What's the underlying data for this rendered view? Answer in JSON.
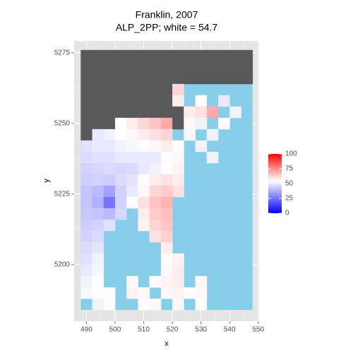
{
  "chart_data": {
    "type": "raster",
    "title": [
      "Franklin, 2007",
      "ALP_2PP; white = 54.7"
    ],
    "x_label": "x",
    "y_label": "y",
    "xlim": [
      485.7,
      550.3
    ],
    "ylim": [
      5180,
      5279.2
    ],
    "xticks": [
      490,
      500,
      510,
      520,
      530,
      540,
      550
    ],
    "yticks": [
      5200,
      5225,
      5250,
      5275
    ],
    "grid": true,
    "x": [
      490,
      494,
      498,
      502,
      506,
      510,
      514,
      518,
      522,
      526,
      530,
      534,
      538,
      542,
      546
    ],
    "y": [
      5274,
      5270,
      5266,
      5262,
      5258,
      5254,
      5250,
      5246,
      5242,
      5238,
      5234,
      5230,
      5226,
      5222,
      5218,
      5214,
      5210,
      5206,
      5202,
      5198,
      5194,
      5190,
      5186
    ],
    "cell_size": [
      4,
      4
    ],
    "values": [
      [
        false,
        false,
        false,
        false,
        false,
        false,
        false,
        false,
        false,
        false,
        false,
        false,
        false,
        false,
        false
      ],
      [
        false,
        false,
        false,
        false,
        false,
        false,
        false,
        false,
        false,
        false,
        false,
        false,
        false,
        false,
        false
      ],
      [
        false,
        false,
        false,
        false,
        false,
        false,
        false,
        false,
        false,
        false,
        false,
        false,
        false,
        false,
        false
      ],
      [
        false,
        false,
        false,
        false,
        false,
        false,
        false,
        false,
        62,
        null,
        null,
        null,
        null,
        null,
        null
      ],
      [
        false,
        false,
        false,
        false,
        false,
        false,
        false,
        false,
        58,
        null,
        55,
        null,
        50,
        null,
        null
      ],
      [
        false,
        false,
        false,
        false,
        false,
        false,
        false,
        false,
        false,
        58,
        60,
        70,
        null,
        52,
        null
      ],
      [
        false,
        false,
        false,
        55,
        58,
        62,
        65,
        70,
        false,
        56,
        52,
        null,
        54,
        null,
        null
      ],
      [
        false,
        50,
        52,
        55,
        56,
        58,
        60,
        62,
        null,
        53,
        null,
        52,
        null,
        null,
        null
      ],
      [
        48,
        50,
        50,
        52,
        53,
        54,
        56,
        58,
        55,
        null,
        52,
        null,
        null,
        null,
        null
      ],
      [
        47,
        48,
        48,
        50,
        50,
        50,
        50,
        54,
        56,
        null,
        null,
        52,
        null,
        null,
        null
      ],
      [
        45,
        46,
        47,
        46,
        47,
        50,
        52,
        55,
        57,
        null,
        null,
        null,
        null,
        null,
        null
      ],
      [
        44,
        45,
        44,
        47,
        49,
        54,
        58,
        60,
        58,
        null,
        null,
        null,
        null,
        null,
        null
      ],
      [
        42,
        40,
        35,
        45,
        50,
        56,
        62,
        64,
        60,
        null,
        null,
        null,
        null,
        null,
        null
      ],
      [
        42,
        38,
        25,
        45,
        55,
        60,
        65,
        68,
        null,
        null,
        null,
        null,
        null,
        null,
        null
      ],
      [
        43,
        42,
        40,
        46,
        null,
        58,
        64,
        66,
        null,
        null,
        null,
        null,
        null,
        null,
        null
      ],
      [
        44,
        45,
        48,
        null,
        null,
        57,
        62,
        65,
        null,
        null,
        null,
        null,
        null,
        null,
        null
      ],
      [
        45,
        47,
        null,
        null,
        null,
        null,
        60,
        63,
        null,
        null,
        null,
        null,
        null,
        null,
        null
      ],
      [
        47,
        49,
        null,
        null,
        null,
        null,
        null,
        58,
        null,
        null,
        null,
        null,
        null,
        null,
        null
      ],
      [
        48,
        52,
        null,
        null,
        null,
        null,
        null,
        55,
        57,
        null,
        null,
        null,
        null,
        null,
        null
      ],
      [
        50,
        53,
        null,
        null,
        null,
        null,
        null,
        56,
        58,
        null,
        null,
        null,
        null,
        null,
        null
      ],
      [
        52,
        54,
        null,
        null,
        56,
        null,
        55,
        57,
        58,
        null,
        56,
        null,
        null,
        null,
        null
      ],
      [
        53,
        55,
        54,
        null,
        57,
        56,
        null,
        56,
        57,
        55,
        56,
        null,
        null,
        null,
        null
      ],
      [
        null,
        52,
        55,
        null,
        null,
        55,
        56,
        null,
        56,
        null,
        55,
        null,
        null,
        null,
        null
      ]
    ],
    "water_color": "#87CEEB",
    "na_color": "#595959",
    "panel_color": "#E5E5E5",
    "scale": {
      "low": "#0000FF",
      "mid": "#FFFFFF",
      "high": "#FF0000",
      "midpoint": 54.7,
      "limits": [
        0,
        100
      ],
      "ticks": [
        0,
        25,
        50,
        75,
        100
      ]
    }
  }
}
